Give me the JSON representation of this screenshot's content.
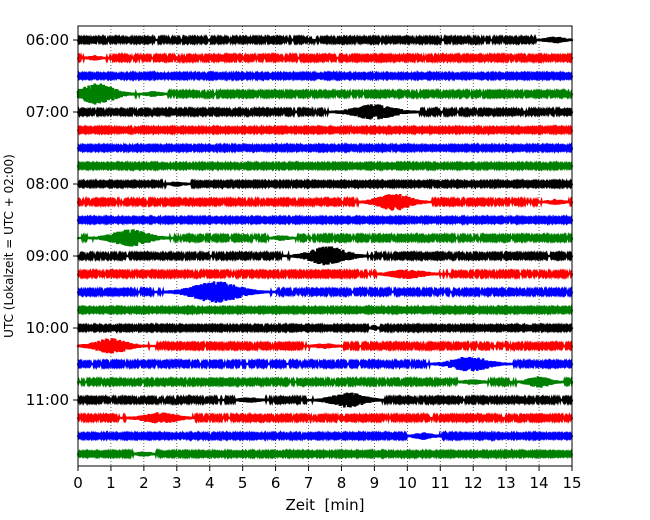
{
  "chart_data": {
    "type": "line",
    "title": "",
    "xlabel": "Zeit  [min]",
    "ylabel": "UTC (Lokalzeit = UTC + 02:00)",
    "xlim": [
      0,
      15
    ],
    "x_ticks": [
      0,
      1,
      2,
      3,
      4,
      5,
      6,
      7,
      8,
      9,
      10,
      11,
      12,
      13,
      14,
      15
    ],
    "y_tick_labels": [
      "06:00",
      "07:00",
      "08:00",
      "09:00",
      "10:00",
      "11:00"
    ],
    "grid": "vertical dotted",
    "trace_start_utc": "06:00",
    "trace_length_min": 15,
    "color_cycle": [
      "#000000",
      "#ff0000",
      "#0000ff",
      "#008000"
    ],
    "traces": [
      {
        "start": "06:00",
        "color": "#000000",
        "noise": 0.9,
        "events": [
          {
            "t": 14.5,
            "amp": 2.6,
            "width": 0.5
          }
        ]
      },
      {
        "start": "06:15",
        "color": "#ff0000",
        "noise": 0.9,
        "events": [
          {
            "t": 0.5,
            "amp": 2.0,
            "width": 0.35
          }
        ]
      },
      {
        "start": "06:30",
        "color": "#0000ff",
        "noise": 0.8,
        "events": []
      },
      {
        "start": "06:45",
        "color": "#008000",
        "noise": 0.9,
        "events": [
          {
            "t": 0.6,
            "amp": 10.0,
            "width": 0.9
          },
          {
            "t": 2.3,
            "amp": 2.0,
            "width": 0.4
          }
        ]
      },
      {
        "start": "07:00",
        "color": "#000000",
        "noise": 0.9,
        "events": [
          {
            "t": 9.0,
            "amp": 7.0,
            "width": 1.1
          }
        ]
      },
      {
        "start": "07:15",
        "color": "#ff0000",
        "noise": 0.8,
        "events": []
      },
      {
        "start": "07:30",
        "color": "#0000ff",
        "noise": 0.8,
        "events": []
      },
      {
        "start": "07:45",
        "color": "#008000",
        "noise": 0.8,
        "events": []
      },
      {
        "start": "08:00",
        "color": "#000000",
        "noise": 0.8,
        "events": [
          {
            "t": 3.0,
            "amp": 1.8,
            "width": 0.4
          }
        ]
      },
      {
        "start": "08:15",
        "color": "#ff0000",
        "noise": 0.9,
        "events": [
          {
            "t": 9.6,
            "amp": 8.0,
            "width": 0.9
          },
          {
            "t": 14.5,
            "amp": 2.2,
            "width": 0.4
          }
        ]
      },
      {
        "start": "08:30",
        "color": "#0000ff",
        "noise": 0.8,
        "events": []
      },
      {
        "start": "08:45",
        "color": "#008000",
        "noise": 0.9,
        "events": [
          {
            "t": 1.6,
            "amp": 8.0,
            "width": 1.0
          },
          {
            "t": 6.2,
            "amp": 2.0,
            "width": 0.4
          }
        ]
      },
      {
        "start": "09:00",
        "color": "#000000",
        "noise": 0.9,
        "events": [
          {
            "t": 7.6,
            "amp": 9.0,
            "width": 1.0
          }
        ]
      },
      {
        "start": "09:15",
        "color": "#ff0000",
        "noise": 0.9,
        "events": [
          {
            "t": 10.0,
            "amp": 4.0,
            "width": 0.9
          }
        ]
      },
      {
        "start": "09:30",
        "color": "#0000ff",
        "noise": 0.9,
        "events": [
          {
            "t": 4.2,
            "amp": 10.0,
            "width": 1.3
          }
        ]
      },
      {
        "start": "09:45",
        "color": "#008000",
        "noise": 0.8,
        "events": []
      },
      {
        "start": "10:00",
        "color": "#000000",
        "noise": 0.8,
        "events": [
          {
            "t": 9.0,
            "amp": 2.5,
            "width": 0.15
          }
        ]
      },
      {
        "start": "10:15",
        "color": "#ff0000",
        "noise": 0.9,
        "events": [
          {
            "t": 1.0,
            "amp": 7.0,
            "width": 0.9
          },
          {
            "t": 7.5,
            "amp": 2.0,
            "width": 0.5
          }
        ]
      },
      {
        "start": "10:30",
        "color": "#0000ff",
        "noise": 0.9,
        "events": [
          {
            "t": 11.9,
            "amp": 7.0,
            "width": 1.0
          }
        ]
      },
      {
        "start": "10:45",
        "color": "#008000",
        "noise": 0.9,
        "events": [
          {
            "t": 14.0,
            "amp": 5.0,
            "width": 0.6
          },
          {
            "t": 12.0,
            "amp": 2.0,
            "width": 0.5
          }
        ]
      },
      {
        "start": "11:00",
        "color": "#000000",
        "noise": 0.9,
        "events": [
          {
            "t": 8.2,
            "amp": 7.0,
            "width": 0.9
          },
          {
            "t": 5.2,
            "amp": 2.0,
            "width": 0.5
          }
        ]
      },
      {
        "start": "11:15",
        "color": "#ff0000",
        "noise": 0.9,
        "events": [
          {
            "t": 2.5,
            "amp": 5.0,
            "width": 0.9
          },
          {
            "t": 8.0,
            "amp": 3.5,
            "width": 0.1
          }
        ]
      },
      {
        "start": "11:30",
        "color": "#0000ff",
        "noise": 0.8,
        "events": [
          {
            "t": 10.5,
            "amp": 3.0,
            "width": 0.5
          }
        ]
      },
      {
        "start": "11:45",
        "color": "#008000",
        "noise": 0.8,
        "events": [
          {
            "t": 2.0,
            "amp": 1.8,
            "width": 0.4
          }
        ]
      }
    ]
  }
}
